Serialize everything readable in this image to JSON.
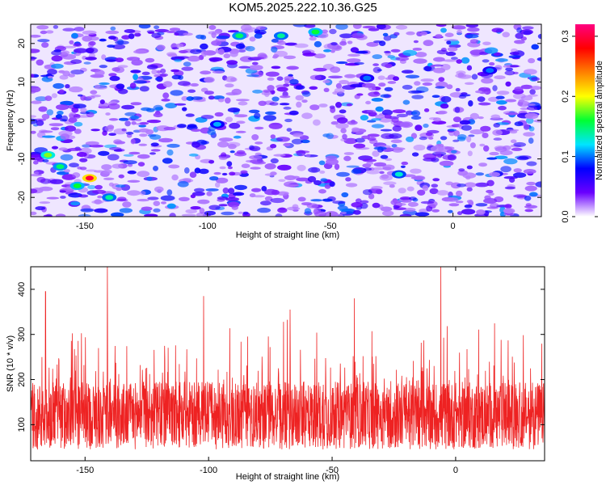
{
  "title": "KOM5.2025.222.10.36.G25",
  "chart_data": [
    {
      "type": "heatmap",
      "name": "spectrogram",
      "xlabel": "Height of straight line (km)",
      "ylabel": "Frequency (Hz)",
      "xlim": [
        -172,
        36
      ],
      "ylim": [
        -25,
        25
      ],
      "xticks": [
        -150,
        -100,
        -50,
        0
      ],
      "yticks": [
        -20,
        -10,
        0,
        10,
        20
      ],
      "colorbar": {
        "label": "Normalized spectral amplitude",
        "range": [
          0,
          0.32
        ],
        "ticks": [
          "0.0",
          "0.1",
          "0.2",
          "0.3"
        ],
        "colors": [
          "#ffffff",
          "#6a00ff",
          "#0000ff",
          "#00e5ff",
          "#00ff33",
          "#ffff00",
          "#ff8000",
          "#ff0000",
          "#ff0080"
        ]
      },
      "hotspots": [
        {
          "x": -148,
          "y": -15,
          "value": 0.3
        },
        {
          "x": -165,
          "y": -9,
          "value": 0.18
        },
        {
          "x": -160,
          "y": -12,
          "value": 0.15
        },
        {
          "x": -153,
          "y": -17,
          "value": 0.16
        },
        {
          "x": -140,
          "y": -20,
          "value": 0.14
        },
        {
          "x": -87,
          "y": 22,
          "value": 0.15
        },
        {
          "x": -70,
          "y": 22,
          "value": 0.14
        },
        {
          "x": -56,
          "y": 23,
          "value": 0.16
        },
        {
          "x": -22,
          "y": -14,
          "value": 0.13
        },
        {
          "x": -96,
          "y": -1,
          "value": 0.11
        },
        {
          "x": 15,
          "y": 13,
          "value": 0.1
        },
        {
          "x": -35,
          "y": 11,
          "value": 0.1
        }
      ]
    },
    {
      "type": "line",
      "name": "snr",
      "xlabel": "Height of straight line (km)",
      "ylabel": "SNR (10 * v/v)",
      "xlim": [
        -172,
        36
      ],
      "ylim": [
        20,
        450
      ],
      "xticks": [
        -150,
        -100,
        -50,
        0
      ],
      "yticks": [
        100,
        200,
        300,
        400
      ],
      "color": "#ee2222",
      "baseline_mean": 120,
      "spikes": [
        {
          "x": -141,
          "y": 450
        },
        {
          "x": -6,
          "y": 450
        },
        {
          "x": -166,
          "y": 395
        },
        {
          "x": -41,
          "y": 380
        },
        {
          "x": -67,
          "y": 355
        },
        {
          "x": -102,
          "y": 385
        }
      ]
    }
  ]
}
